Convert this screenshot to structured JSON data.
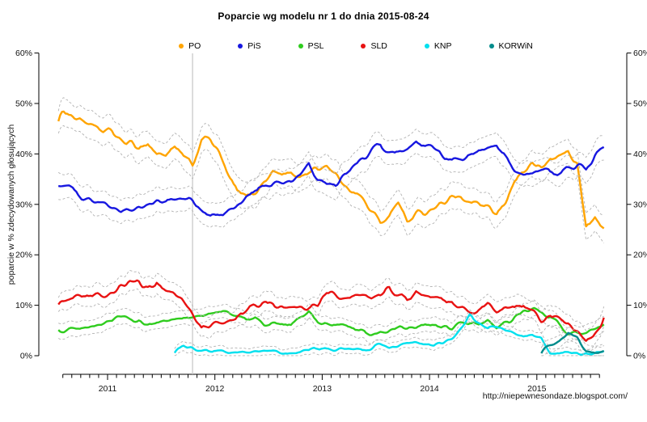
{
  "title": "Poparcie wg modelu nr 1 do dnia 2015-08-24",
  "footer": {
    "source_url": "http://niepewnesondaze.blogspot.com/"
  },
  "axes": {
    "ylabel": "poparcie w % zdecydowanych głosujących",
    "y_ticks": [
      "0%",
      "10%",
      "20%",
      "30%",
      "40%",
      "50%",
      "60%"
    ],
    "x_ticks": [
      "2011",
      "2012",
      "2013",
      "2014",
      "2015"
    ],
    "y_range": [
      0,
      60
    ]
  },
  "chart_data": {
    "type": "line",
    "x_start": "2010-07",
    "x_end": "2015-08",
    "x_step": "monthly",
    "markers": [
      {
        "type": "vline",
        "date": "2011-10",
        "color": "#c4c4c4"
      }
    ],
    "band_color": "#b2b2b2",
    "series": [
      {
        "name": "PO",
        "color": "#FFA400",
        "ci_halfwidth": 2.6,
        "start": "2010-07",
        "values": [
          47.5,
          48.5,
          47,
          46.5,
          45,
          44.5,
          44.5,
          42.5,
          42,
          41.5,
          42,
          40,
          40,
          41,
          39.5,
          37.5,
          43,
          43,
          40,
          35.5,
          32.5,
          31.5,
          32.5,
          34.5,
          36.5,
          36,
          36,
          35.5,
          36.5,
          37,
          38,
          36,
          33.5,
          33,
          31,
          28.5,
          26.5,
          28,
          30.5,
          26.5,
          28,
          28.5,
          29.5,
          30.5,
          31.5,
          31,
          30.5,
          30,
          29,
          28,
          30,
          35,
          36.5,
          38,
          37,
          39,
          39.5,
          40.5,
          38,
          25.5,
          27,
          25.5
        ]
      },
      {
        "name": "PiS",
        "color": "#1717E0",
        "ci_halfwidth": 2.4,
        "start": "2010-07",
        "values": [
          34,
          33.5,
          32.5,
          31.5,
          30.5,
          30,
          29.5,
          28.5,
          28.5,
          29.5,
          29.5,
          30.5,
          30.5,
          31,
          31.5,
          30.5,
          28.5,
          27.5,
          28,
          28.5,
          30,
          31.5,
          32.5,
          33.5,
          34,
          34,
          34.5,
          35.5,
          38,
          35,
          33.5,
          34,
          35.5,
          37.5,
          39,
          40.5,
          41.5,
          40,
          40,
          40.5,
          42,
          41.5,
          41,
          39.5,
          38.5,
          39,
          39.5,
          40.5,
          41.5,
          42,
          39.5,
          36.5,
          35.5,
          36,
          37,
          36.5,
          36.5,
          37,
          38,
          36.5,
          40,
          42
        ]
      },
      {
        "name": "PSL",
        "color": "#2FCC1E",
        "ci_halfwidth": 1.4,
        "start": "2010-07",
        "values": [
          4.5,
          4.8,
          5,
          5.2,
          5.5,
          6.5,
          7,
          7.5,
          7.3,
          7,
          6,
          6.5,
          6.8,
          7,
          7.3,
          7.5,
          7.8,
          8.2,
          8.5,
          8.8,
          8,
          7,
          7.5,
          6,
          6.5,
          6.3,
          6.2,
          7.2,
          8.3,
          7,
          6.2,
          6,
          5.6,
          5.5,
          5.3,
          4.2,
          5.2,
          5,
          5.1,
          5.3,
          5.6,
          6.1,
          6.2,
          5.8,
          5.6,
          6.3,
          6.5,
          6.4,
          7,
          5.2,
          6.4,
          7.5,
          8.8,
          9,
          8.5,
          8,
          6,
          4.5,
          4,
          4.5,
          5.3,
          5.8
        ]
      },
      {
        "name": "SLD",
        "color": "#E81212",
        "ci_halfwidth": 1.9,
        "start": "2010-07",
        "values": [
          10.5,
          11,
          11.5,
          12,
          12,
          12,
          12.5,
          13.5,
          14.5,
          15,
          13,
          14.5,
          13,
          12.5,
          10.5,
          8.5,
          5.5,
          6,
          6,
          6.5,
          7.5,
          9,
          10.5,
          10.5,
          10,
          10,
          9.5,
          9.5,
          9.5,
          10,
          12.5,
          12,
          11.5,
          12,
          12.5,
          12,
          12.5,
          13.5,
          12,
          11,
          12.5,
          12,
          11.5,
          11,
          10.5,
          9.5,
          8.5,
          9,
          10,
          8.5,
          9.5,
          9,
          10,
          8.5,
          7,
          7.5,
          7,
          6.5,
          5,
          3,
          4.5,
          6.5
        ]
      },
      {
        "name": "KNP",
        "color": "#00E0EE",
        "ci_halfwidth": 0.9,
        "start": "2011-08",
        "values": [
          0.8,
          2,
          1.5,
          1,
          1,
          1,
          0.8,
          0.7,
          0.6,
          0.8,
          1,
          0.8,
          0.6,
          0.6,
          0.8,
          1.2,
          1.6,
          1.2,
          1.1,
          1.2,
          1.3,
          1.2,
          1.5,
          2.3,
          1.7,
          2,
          2.3,
          2.7,
          2.5,
          2.2,
          2.5,
          3.5,
          5.5,
          8,
          6.5,
          5.5,
          6,
          5.2,
          4.5,
          3.8,
          4,
          3.5,
          0.6,
          0.5,
          0.6,
          0.5,
          0.4,
          0.5,
          0.4
        ]
      },
      {
        "name": "KORWiN",
        "color": "#008B8B",
        "ci_halfwidth": 1.3,
        "start": "2015-01",
        "values": [
          1,
          2.2,
          3,
          4.5,
          3.5,
          1,
          0.7,
          0.5
        ]
      }
    ]
  }
}
